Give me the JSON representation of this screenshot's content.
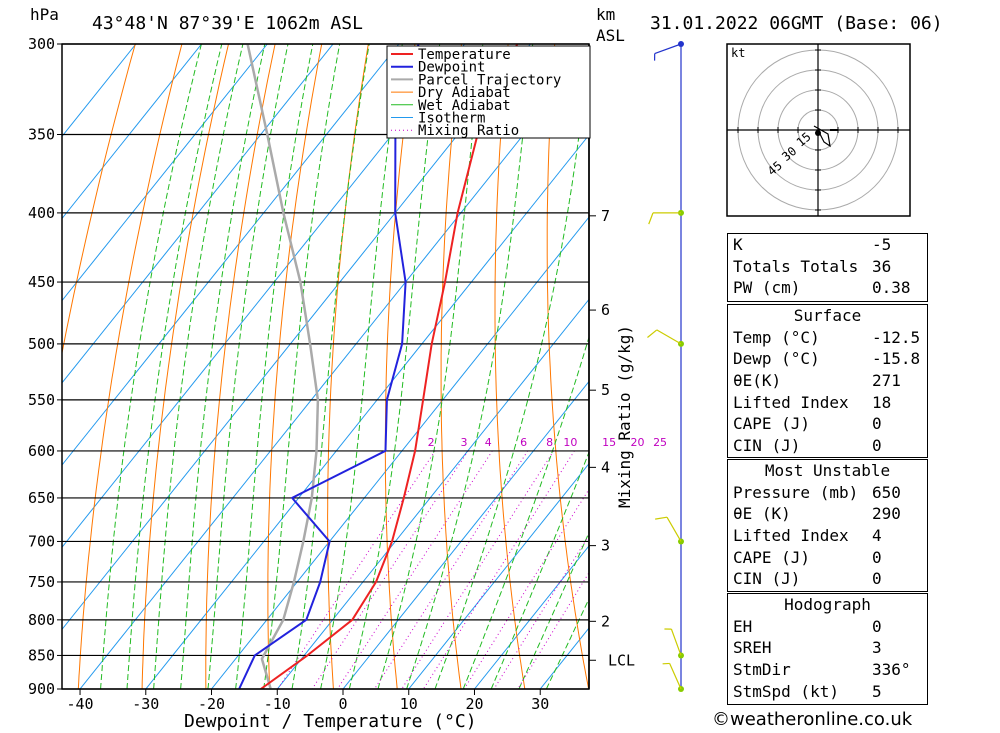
{
  "header": {
    "pressure_unit": "hPa",
    "location": "43°48'N 87°39'E 1062m ASL",
    "height_unit": "km",
    "height_ref": "ASL",
    "datetime": "31.01.2022 06GMT (Base: 06)"
  },
  "chart_data": {
    "type": "skew-T log-P diagram",
    "xlabel": "Dewpoint / Temperature (°C)",
    "ylabel": "hPa",
    "right_axis_label": "Mixing Ratio (g/kg)",
    "xlim": [
      -40,
      36
    ],
    "pressure_range": [
      300,
      900
    ],
    "pressure_levels": [
      300,
      350,
      400,
      450,
      500,
      550,
      600,
      650,
      700,
      750,
      800,
      850,
      900
    ],
    "temperature_ticks": [
      -40,
      -30,
      -20,
      -10,
      0,
      10,
      20,
      30
    ],
    "legend": [
      "Temperature",
      "Dewpoint",
      "Parcel Trajectory",
      "Dry Adiabat",
      "Wet Adiabat",
      "Isotherm",
      "Mixing Ratio"
    ],
    "legend_position": "top-center",
    "colors": {
      "temperature": "#ee2222",
      "dewpoint": "#2222dd",
      "parcel": "#aaaaaa",
      "dry_adiabat": "#ff7700",
      "wet_adiabat": "#22bb22",
      "isotherm": "#2299ee",
      "mixing_ratio": "#cc00cc"
    },
    "mixing_ratio_labels": [
      "2",
      "3",
      "4",
      "6",
      "8",
      "10",
      "15",
      "20",
      "25"
    ],
    "mixing_ratio_values": [
      2,
      3,
      4,
      6,
      8,
      10,
      15,
      20,
      25
    ],
    "height_ticks": [
      {
        "label": "7",
        "p": 402
      },
      {
        "label": "6",
        "p": 472
      },
      {
        "label": "5",
        "p": 541
      },
      {
        "label": "4",
        "p": 617
      },
      {
        "label": "3",
        "p": 705
      },
      {
        "label": "2",
        "p": 802
      },
      {
        "label": "LCL",
        "p": 857
      }
    ],
    "temperature_profile": [
      {
        "p": 300,
        "t": -52
      },
      {
        "p": 350,
        "t": -47
      },
      {
        "p": 400,
        "t": -40.5
      },
      {
        "p": 450,
        "t": -34
      },
      {
        "p": 500,
        "t": -28.5
      },
      {
        "p": 550,
        "t": -23
      },
      {
        "p": 600,
        "t": -18
      },
      {
        "p": 650,
        "t": -14
      },
      {
        "p": 700,
        "t": -10.5
      },
      {
        "p": 750,
        "t": -8
      },
      {
        "p": 800,
        "t": -7
      },
      {
        "p": 850,
        "t": -9.5
      },
      {
        "p": 900,
        "t": -12.5
      }
    ],
    "dewpoint_profile": [
      {
        "p": 300,
        "t": -67
      },
      {
        "p": 350,
        "t": -59.5
      },
      {
        "p": 400,
        "t": -50
      },
      {
        "p": 450,
        "t": -40
      },
      {
        "p": 500,
        "t": -33
      },
      {
        "p": 550,
        "t": -28.5
      },
      {
        "p": 600,
        "t": -22.5
      },
      {
        "p": 650,
        "t": -31
      },
      {
        "p": 700,
        "t": -20
      },
      {
        "p": 750,
        "t": -16.5
      },
      {
        "p": 800,
        "t": -14
      },
      {
        "p": 850,
        "t": -17.5
      },
      {
        "p": 900,
        "t": -15.8
      }
    ],
    "parcel_profile": [
      {
        "p": 300,
        "t": -93
      },
      {
        "p": 350,
        "t": -79
      },
      {
        "p": 400,
        "t": -67
      },
      {
        "p": 450,
        "t": -56
      },
      {
        "p": 500,
        "t": -47
      },
      {
        "p": 550,
        "t": -39
      },
      {
        "p": 600,
        "t": -33
      },
      {
        "p": 650,
        "t": -28
      },
      {
        "p": 700,
        "t": -24
      },
      {
        "p": 750,
        "t": -20.5
      },
      {
        "p": 800,
        "t": -17.5
      },
      {
        "p": 855,
        "t": -16
      },
      {
        "p": 900,
        "t": -11
      }
    ],
    "wind_barbs": [
      {
        "p": 300,
        "dir": 250,
        "speed": 5
      },
      {
        "p": 400,
        "dir": 270,
        "speed": 10
      },
      {
        "p": 500,
        "dir": 300,
        "speed": 10
      },
      {
        "p": 700,
        "dir": 330,
        "speed": 10
      },
      {
        "p": 850,
        "dir": 340,
        "speed": 5
      },
      {
        "p": 900,
        "dir": 336,
        "speed": 5
      }
    ]
  },
  "hodograph": {
    "unit": "kt",
    "ring_labels": [
      "15",
      "30",
      "45"
    ],
    "points": [
      {
        "u": 0,
        "v": 0
      },
      {
        "u": 1.5,
        "v": -3
      },
      {
        "u": 3,
        "v": -4
      },
      {
        "u": 2.5,
        "v": -1
      },
      {
        "u": -1,
        "v": 1
      }
    ]
  },
  "indices": [
    {
      "label": "K",
      "value": "-5"
    },
    {
      "label": "Totals Totals",
      "value": "36"
    },
    {
      "label": "PW (cm)",
      "value": "0.38"
    }
  ],
  "surface": {
    "title": "Surface",
    "rows": [
      {
        "label": "Temp (°C)",
        "value": "-12.5"
      },
      {
        "label": "Dewp (°C)",
        "value": "-15.8"
      },
      {
        "label": "θE(K)",
        "value": "271"
      },
      {
        "label": "Lifted Index",
        "value": "18"
      },
      {
        "label": "CAPE (J)",
        "value": "0"
      },
      {
        "label": "CIN (J)",
        "value": "0"
      }
    ]
  },
  "most_unstable": {
    "title": "Most Unstable",
    "rows": [
      {
        "label": "Pressure (mb)",
        "value": "650"
      },
      {
        "label": "θE (K)",
        "value": "290"
      },
      {
        "label": "Lifted Index",
        "value": "4"
      },
      {
        "label": "CAPE (J)",
        "value": "0"
      },
      {
        "label": "CIN (J)",
        "value": "0"
      }
    ]
  },
  "hodograph_table": {
    "title": "Hodograph",
    "rows": [
      {
        "label": "EH",
        "value": "0"
      },
      {
        "label": "SREH",
        "value": "3"
      },
      {
        "label": "StmDir",
        "value": "336°"
      },
      {
        "label": "StmSpd (kt)",
        "value": "5"
      }
    ]
  },
  "footer": "©weatheronline.co.uk"
}
